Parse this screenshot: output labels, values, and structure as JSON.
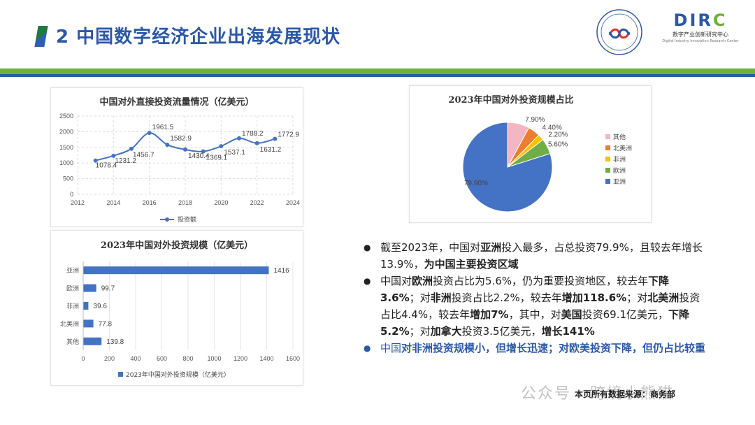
{
  "header": {
    "title": "2 中国数字经济企业出海发展现状",
    "logo": {
      "main_prefix": "DIR",
      "main_suffix": "C",
      "cn": "数字产业创新研究中心",
      "en": "Digital Industry Innovation Research Center"
    }
  },
  "colors": {
    "blue": "#4472c4",
    "green_band": "#6fb03a",
    "title_blue": "#2b58a8"
  },
  "chart_data": [
    {
      "type": "line",
      "title": "中国对外直接投资流量情况（亿美元）",
      "x": [
        2013,
        2014,
        2015,
        2016,
        2017,
        2018,
        2019,
        2020,
        2021,
        2022,
        2023
      ],
      "series": [
        {
          "name": "投资额",
          "values": [
            1078.4,
            1231.2,
            1456.7,
            1961.5,
            1582.9,
            1430.4,
            1369.1,
            1537.1,
            1788.2,
            1631.2,
            1772.9
          ]
        }
      ],
      "data_labels": [
        "1078.4",
        "1231.2",
        "1456.7",
        "1961.5",
        "1582.9",
        "1430.4",
        "1369.1",
        "1537.1",
        "1788.2",
        "1631.2",
        "1772.9"
      ],
      "xlim": [
        2012,
        2024
      ],
      "xticks": [
        "2012",
        "2014",
        "2016",
        "2018",
        "2020",
        "2022",
        "2024"
      ],
      "ylim": [
        0,
        2500
      ],
      "yticks": [
        "0",
        "500",
        "1000",
        "1500",
        "2000",
        "2500"
      ],
      "legend": "bottom"
    },
    {
      "type": "bar",
      "orientation": "horizontal",
      "title": "2023年中国对外投资规模（亿美元）",
      "categories": [
        "亚洲",
        "欧洲",
        "非洲",
        "北美洲",
        "其他"
      ],
      "series": [
        {
          "name": "2023年中国对外投资规模（亿美元）",
          "values": [
            1416,
            99.7,
            39.6,
            77.8,
            139.8
          ]
        }
      ],
      "data_labels": [
        "1416",
        "99.7",
        "39.6",
        "77.8",
        "139.8"
      ],
      "xlim": [
        0,
        1600
      ],
      "xticks": [
        "0",
        "200",
        "400",
        "600",
        "800",
        "1000",
        "1200",
        "1400",
        "1600"
      ],
      "legend": "bottom"
    },
    {
      "type": "pie",
      "title": "2023年中国对外投资规模占比",
      "slices": [
        {
          "label": "亚洲",
          "value": 79.9,
          "value_label": "79.90%",
          "color": "#4472c4"
        },
        {
          "label": "欧洲",
          "value": 5.6,
          "value_label": "5.60%",
          "color": "#70ad47"
        },
        {
          "label": "非洲",
          "value": 2.2,
          "value_label": "2.20%",
          "color": "#ffc000"
        },
        {
          "label": "北美洲",
          "value": 4.4,
          "value_label": "4.40%",
          "color": "#ed7d31"
        },
        {
          "label": "其他",
          "value": 7.9,
          "value_label": "7.90%",
          "color": "#f4b6c2"
        }
      ],
      "legend_order": [
        "其他",
        "北美洲",
        "非洲",
        "欧洲",
        "亚洲"
      ],
      "legend": "right"
    }
  ],
  "bullets": [
    {
      "color": "dark",
      "segments": [
        {
          "text": "截至2023年，中国对",
          "bold": false
        },
        {
          "text": "亚洲",
          "bold": true
        },
        {
          "text": "投入最多，占总投资79.9%，且较去年增长13.9%，",
          "bold": false
        },
        {
          "text": "为中国主要投资区域",
          "bold": true
        }
      ]
    },
    {
      "color": "dark",
      "segments": [
        {
          "text": "中国对",
          "bold": false
        },
        {
          "text": "欧洲",
          "bold": true
        },
        {
          "text": "投资占比为5.6%，仍为重要投资地区，较去年",
          "bold": false
        },
        {
          "text": "下降3.6%",
          "bold": true
        },
        {
          "text": "；对",
          "bold": false
        },
        {
          "text": "非洲",
          "bold": true
        },
        {
          "text": "投资占比2.2%，较去年",
          "bold": false
        },
        {
          "text": "增加118.6%",
          "bold": true
        },
        {
          "text": "；对",
          "bold": false
        },
        {
          "text": "北美洲",
          "bold": true
        },
        {
          "text": "投资占比4.4%，较去年",
          "bold": false
        },
        {
          "text": "增加7%",
          "bold": true
        },
        {
          "text": "，其中，对",
          "bold": false
        },
        {
          "text": "美国",
          "bold": true
        },
        {
          "text": "投资69.1亿美元，",
          "bold": false
        },
        {
          "text": "下降5.2%",
          "bold": true
        },
        {
          "text": "；对",
          "bold": false
        },
        {
          "text": "加拿大",
          "bold": true
        },
        {
          "text": "投资3.5亿美元，",
          "bold": false
        },
        {
          "text": "增长141%",
          "bold": true
        }
      ]
    },
    {
      "color": "blue",
      "segments": [
        {
          "text": "中国",
          "bold": false
        },
        {
          "text": "对非洲投资规模小，但增长迅速；对欧美投资下降，但仍占比较重",
          "bold": true
        }
      ]
    }
  ],
  "bullet_symbol": "●",
  "source": "本页所有数据来源：商务部",
  "watermark": "公众号 · 跨境小熊猫"
}
